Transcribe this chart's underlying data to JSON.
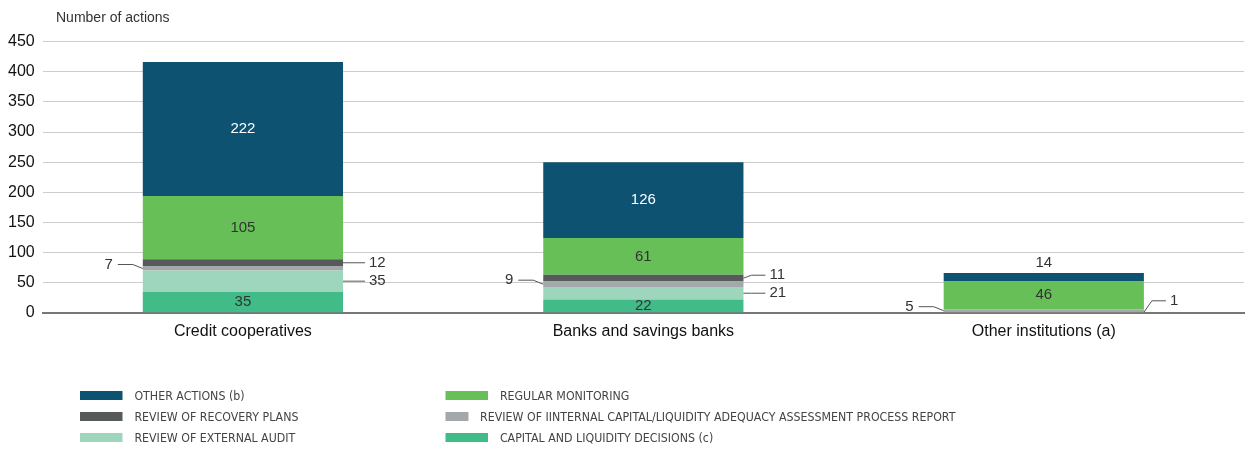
{
  "chart_data": {
    "type": "bar",
    "stacked": true,
    "ylabel": "Number of actions",
    "categories": [
      "Credit cooperatives",
      "Banks and savings banks",
      "Other institutions (a)"
    ],
    "series": [
      {
        "name": "CAPITAL AND LIQUIDITY DECISIONS (c)",
        "color": "#41bb88",
        "values": [
          35,
          22,
          null
        ]
      },
      {
        "name": "REVIEW OF EXTERNAL AUDIT",
        "color": "#9dd6bd",
        "values": [
          35,
          21,
          1
        ]
      },
      {
        "name": "REVIEW OF IINTERNAL CAPITAL/LIQUIDITY ADEQUACY ASSESSMENT PROCESS REPORT",
        "color": "#a3a8aa",
        "values": [
          7,
          9,
          5
        ]
      },
      {
        "name": "REVIEW OF RECOVERY PLANS",
        "color": "#575a5b",
        "values": [
          12,
          11,
          null
        ]
      },
      {
        "name": "REGULAR MONITORING",
        "color": "#66bf57",
        "values": [
          105,
          61,
          46
        ]
      },
      {
        "name": "OTHER ACTIONS (b)",
        "color": "#0e5272",
        "values": [
          222,
          126,
          14
        ]
      }
    ],
    "ylim": [
      0,
      450
    ],
    "yticks": [
      0,
      50,
      100,
      150,
      200,
      250,
      300,
      350,
      400,
      450
    ],
    "grid": "y",
    "legend": "bottom",
    "data_labels": true
  }
}
